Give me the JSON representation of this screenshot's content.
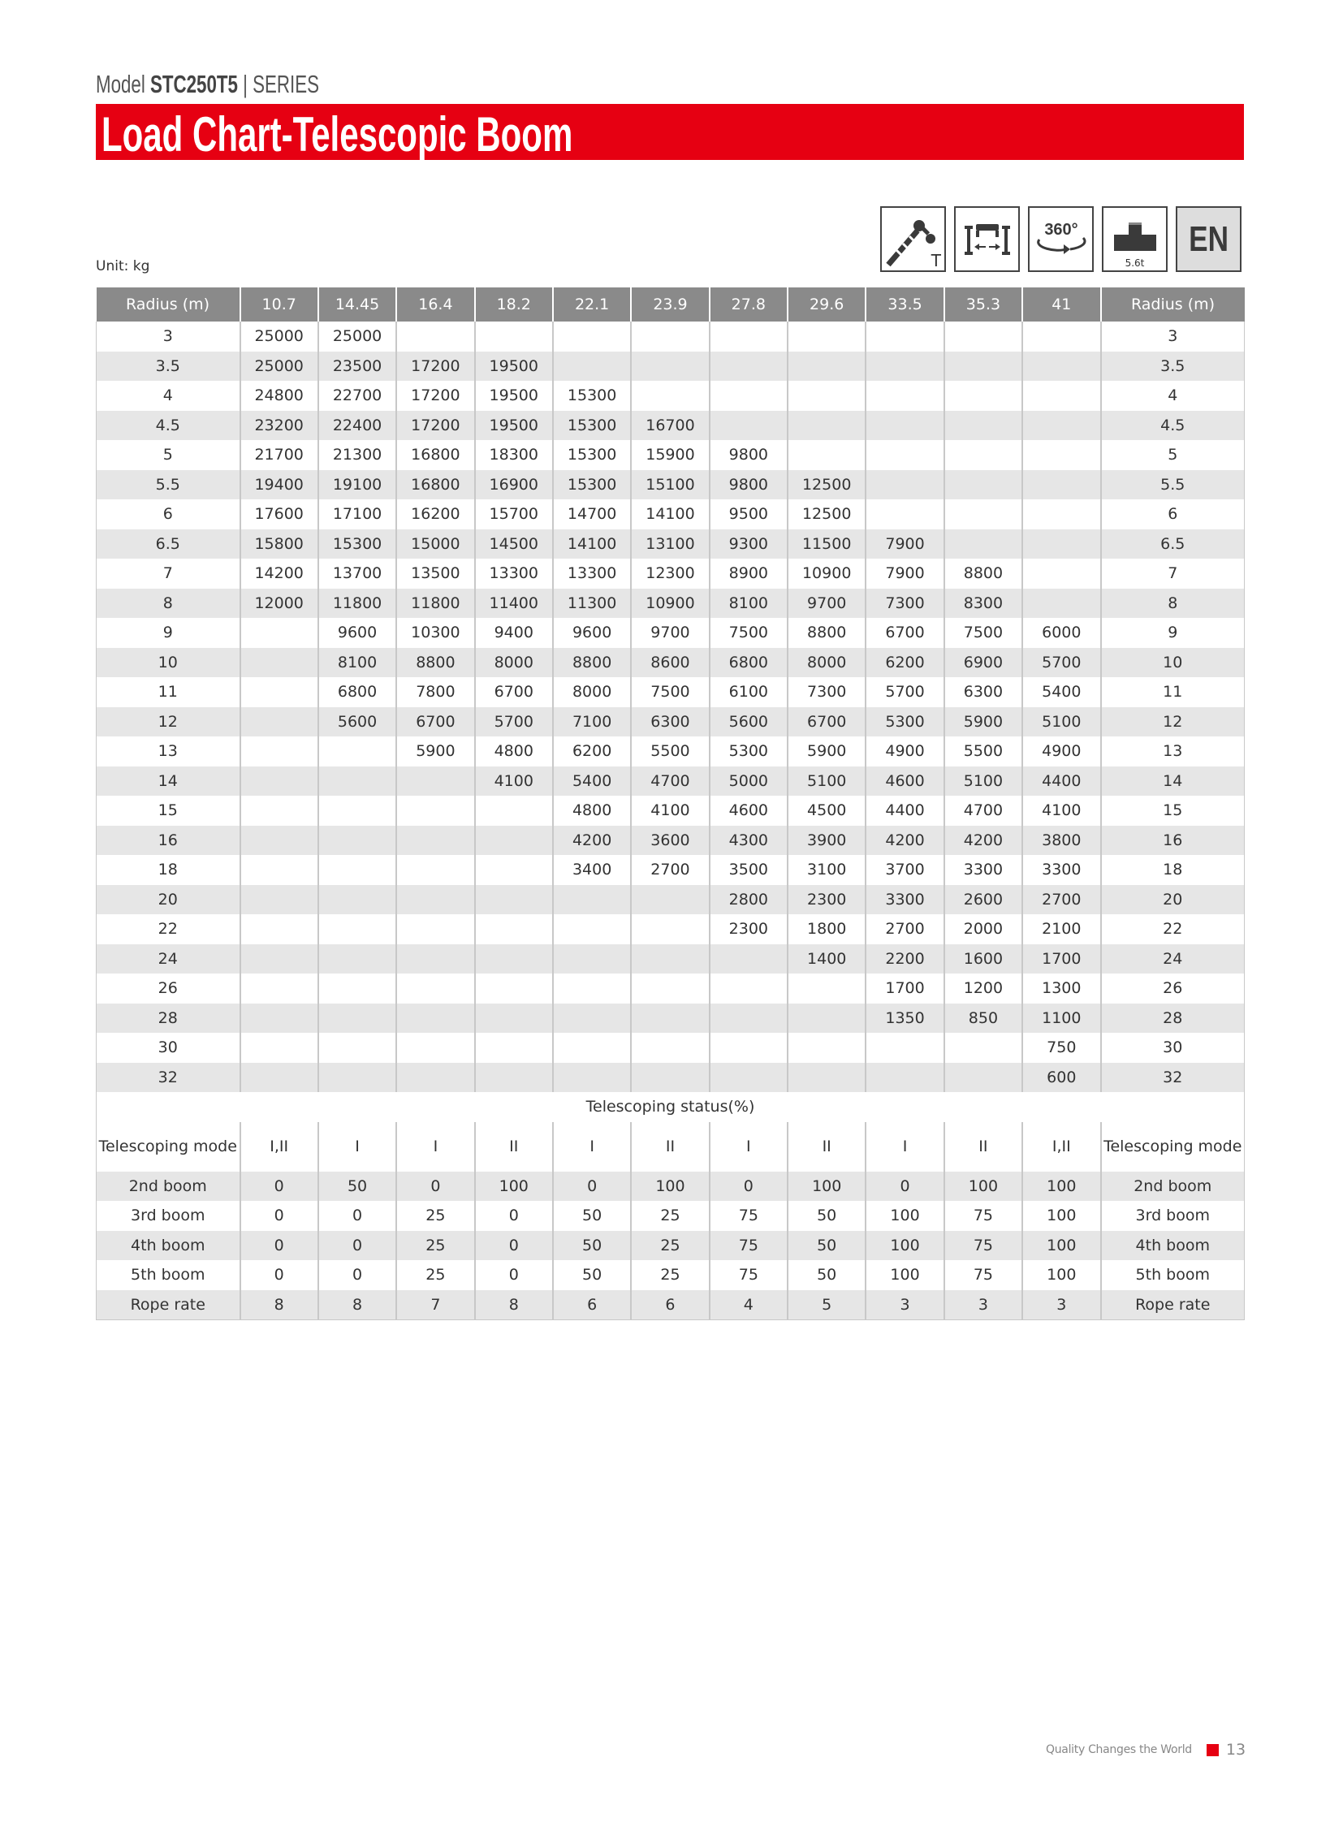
{
  "header": {
    "model_prefix": "Model",
    "model_name": "STC250T5",
    "model_suffix": "| SERIES",
    "title": "Load Chart-Telescopic Boom",
    "unit": "Unit: kg",
    "brand_color": "#e60012"
  },
  "icons": [
    {
      "name": "telescopic-boom-icon",
      "label": "T"
    },
    {
      "name": "outrigger-icon",
      "label": ""
    },
    {
      "name": "rotation-360-icon",
      "label": "360°"
    },
    {
      "name": "counterweight-icon",
      "label": "5.6t"
    },
    {
      "name": "language-icon",
      "label": "EN"
    }
  ],
  "table": {
    "corner_label": "Radius (m)",
    "boom_lengths": [
      "10.7",
      "14.45",
      "16.4",
      "18.2",
      "22.1",
      "23.9",
      "27.8",
      "29.6",
      "33.5",
      "35.3",
      "41"
    ],
    "rows": [
      {
        "radius": "3",
        "values": [
          "25000",
          "25000",
          "",
          "",
          "",
          "",
          "",
          "",
          "",
          "",
          ""
        ]
      },
      {
        "radius": "3.5",
        "values": [
          "25000",
          "23500",
          "17200",
          "19500",
          "",
          "",
          "",
          "",
          "",
          "",
          ""
        ]
      },
      {
        "radius": "4",
        "values": [
          "24800",
          "22700",
          "17200",
          "19500",
          "15300",
          "",
          "",
          "",
          "",
          "",
          ""
        ]
      },
      {
        "radius": "4.5",
        "values": [
          "23200",
          "22400",
          "17200",
          "19500",
          "15300",
          "16700",
          "",
          "",
          "",
          "",
          ""
        ]
      },
      {
        "radius": "5",
        "values": [
          "21700",
          "21300",
          "16800",
          "18300",
          "15300",
          "15900",
          "9800",
          "",
          "",
          "",
          ""
        ]
      },
      {
        "radius": "5.5",
        "values": [
          "19400",
          "19100",
          "16800",
          "16900",
          "15300",
          "15100",
          "9800",
          "12500",
          "",
          "",
          ""
        ]
      },
      {
        "radius": "6",
        "values": [
          "17600",
          "17100",
          "16200",
          "15700",
          "14700",
          "14100",
          "9500",
          "12500",
          "",
          "",
          ""
        ]
      },
      {
        "radius": "6.5",
        "values": [
          "15800",
          "15300",
          "15000",
          "14500",
          "14100",
          "13100",
          "9300",
          "11500",
          "7900",
          "",
          ""
        ]
      },
      {
        "radius": "7",
        "values": [
          "14200",
          "13700",
          "13500",
          "13300",
          "13300",
          "12300",
          "8900",
          "10900",
          "7900",
          "8800",
          ""
        ]
      },
      {
        "radius": "8",
        "values": [
          "12000",
          "11800",
          "11800",
          "11400",
          "11300",
          "10900",
          "8100",
          "9700",
          "7300",
          "8300",
          ""
        ]
      },
      {
        "radius": "9",
        "values": [
          "",
          "9600",
          "10300",
          "9400",
          "9600",
          "9700",
          "7500",
          "8800",
          "6700",
          "7500",
          "6000"
        ]
      },
      {
        "radius": "10",
        "values": [
          "",
          "8100",
          "8800",
          "8000",
          "8800",
          "8600",
          "6800",
          "8000",
          "6200",
          "6900",
          "5700"
        ]
      },
      {
        "radius": "11",
        "values": [
          "",
          "6800",
          "7800",
          "6700",
          "8000",
          "7500",
          "6100",
          "7300",
          "5700",
          "6300",
          "5400"
        ]
      },
      {
        "radius": "12",
        "values": [
          "",
          "5600",
          "6700",
          "5700",
          "7100",
          "6300",
          "5600",
          "6700",
          "5300",
          "5900",
          "5100"
        ]
      },
      {
        "radius": "13",
        "values": [
          "",
          "",
          "5900",
          "4800",
          "6200",
          "5500",
          "5300",
          "5900",
          "4900",
          "5500",
          "4900"
        ]
      },
      {
        "radius": "14",
        "values": [
          "",
          "",
          "",
          "4100",
          "5400",
          "4700",
          "5000",
          "5100",
          "4600",
          "5100",
          "4400"
        ]
      },
      {
        "radius": "15",
        "values": [
          "",
          "",
          "",
          "",
          "4800",
          "4100",
          "4600",
          "4500",
          "4400",
          "4700",
          "4100"
        ]
      },
      {
        "radius": "16",
        "values": [
          "",
          "",
          "",
          "",
          "4200",
          "3600",
          "4300",
          "3900",
          "4200",
          "4200",
          "3800"
        ]
      },
      {
        "radius": "18",
        "values": [
          "",
          "",
          "",
          "",
          "3400",
          "2700",
          "3500",
          "3100",
          "3700",
          "3300",
          "3300"
        ]
      },
      {
        "radius": "20",
        "values": [
          "",
          "",
          "",
          "",
          "",
          "",
          "2800",
          "2300",
          "3300",
          "2600",
          "2700"
        ]
      },
      {
        "radius": "22",
        "values": [
          "",
          "",
          "",
          "",
          "",
          "",
          "2300",
          "1800",
          "2700",
          "2000",
          "2100"
        ]
      },
      {
        "radius": "24",
        "values": [
          "",
          "",
          "",
          "",
          "",
          "",
          "",
          "1400",
          "2200",
          "1600",
          "1700"
        ]
      },
      {
        "radius": "26",
        "values": [
          "",
          "",
          "",
          "",
          "",
          "",
          "",
          "",
          "1700",
          "1200",
          "1300"
        ]
      },
      {
        "radius": "28",
        "values": [
          "",
          "",
          "",
          "",
          "",
          "",
          "",
          "",
          "1350",
          "850",
          "1100"
        ]
      },
      {
        "radius": "30",
        "values": [
          "",
          "",
          "",
          "",
          "",
          "",
          "",
          "",
          "",
          "",
          "750"
        ]
      },
      {
        "radius": "32",
        "values": [
          "",
          "",
          "",
          "",
          "",
          "",
          "",
          "",
          "",
          "",
          "600"
        ]
      }
    ],
    "status_title": "Telescoping status(%)",
    "status_rows": [
      {
        "label": "Telescoping mode",
        "values": [
          "I,II",
          "I",
          "I",
          "II",
          "I",
          "II",
          "I",
          "II",
          "I",
          "II",
          "I,II"
        ]
      },
      {
        "label": "2nd boom",
        "values": [
          "0",
          "50",
          "0",
          "100",
          "0",
          "100",
          "0",
          "100",
          "0",
          "100",
          "100"
        ]
      },
      {
        "label": "3rd boom",
        "values": [
          "0",
          "0",
          "25",
          "0",
          "50",
          "25",
          "75",
          "50",
          "100",
          "75",
          "100"
        ]
      },
      {
        "label": "4th boom",
        "values": [
          "0",
          "0",
          "25",
          "0",
          "50",
          "25",
          "75",
          "50",
          "100",
          "75",
          "100"
        ]
      },
      {
        "label": "5th boom",
        "values": [
          "0",
          "0",
          "25",
          "0",
          "50",
          "25",
          "75",
          "50",
          "100",
          "75",
          "100"
        ]
      },
      {
        "label": "Rope rate",
        "values": [
          "8",
          "8",
          "7",
          "8",
          "6",
          "6",
          "4",
          "5",
          "3",
          "3",
          "3"
        ]
      }
    ]
  },
  "footer": {
    "slogan": "Quality Changes the World",
    "page_number": "13"
  }
}
